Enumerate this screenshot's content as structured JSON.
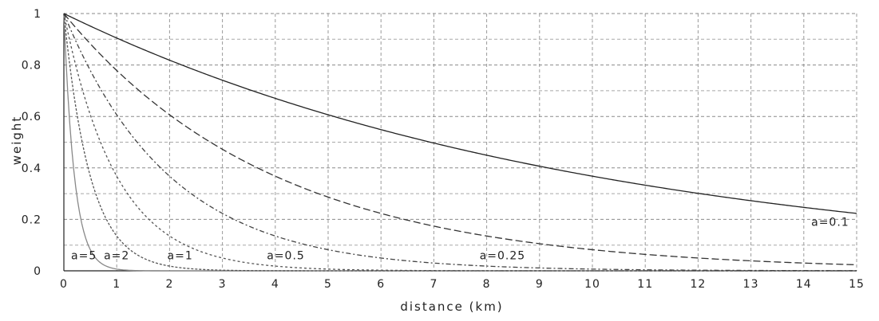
{
  "chart_data": {
    "type": "line",
    "title": "",
    "xlabel": "distance (km)",
    "ylabel": "weight",
    "xlim": [
      0,
      15
    ],
    "ylim": [
      0,
      1
    ],
    "x_ticks": [
      0,
      1,
      2,
      3,
      4,
      5,
      6,
      7,
      8,
      9,
      10,
      11,
      12,
      13,
      14,
      15
    ],
    "x_tick_labels": [
      "0",
      "1",
      "2",
      "3",
      "4",
      "5",
      "6",
      "7",
      "8",
      "9",
      "10",
      "11",
      "12",
      "13",
      "14",
      "15"
    ],
    "y_ticks": [
      0,
      0.2,
      0.4,
      0.6,
      0.8,
      1
    ],
    "y_tick_labels": [
      "0",
      "0.2",
      "0.4",
      "0.6",
      "0.8",
      "1"
    ],
    "y_minor_gridlines": [
      0.1,
      0.3,
      0.5,
      0.7,
      0.9
    ],
    "grid": true,
    "grid_style": "dashed",
    "function": "weight = exp(-a * distance)",
    "series": [
      {
        "name": "a=5",
        "a": 5,
        "dash": "none",
        "color": "#888888",
        "x": [
          0,
          0.1,
          0.2,
          0.3,
          0.4,
          0.5,
          0.6,
          0.8,
          1,
          1.5,
          15
        ],
        "y": [
          1,
          0.61,
          0.37,
          0.22,
          0.14,
          0.08,
          0.05,
          0.02,
          0.01,
          0,
          0
        ]
      },
      {
        "name": "a=2",
        "a": 2,
        "dash": "3,2",
        "color": "#555555",
        "x": [
          0,
          0.2,
          0.4,
          0.6,
          0.8,
          1,
          1.5,
          2,
          3,
          15
        ],
        "y": [
          1,
          0.67,
          0.45,
          0.3,
          0.2,
          0.14,
          0.05,
          0.02,
          0,
          0
        ]
      },
      {
        "name": "a=1",
        "a": 1,
        "dash": "3,3",
        "color": "#555555",
        "x": [
          0,
          0.5,
          1,
          1.5,
          2,
          3,
          4,
          5,
          6,
          15
        ],
        "y": [
          1,
          0.61,
          0.37,
          0.22,
          0.14,
          0.05,
          0.02,
          0.01,
          0,
          0
        ]
      },
      {
        "name": "a=0.5",
        "a": 0.5,
        "dash": "6,3,2,3",
        "color": "#444444",
        "x": [
          0,
          1,
          2,
          3,
          4,
          5,
          6,
          7,
          8,
          9,
          10,
          15
        ],
        "y": [
          1,
          0.61,
          0.37,
          0.22,
          0.14,
          0.08,
          0.05,
          0.03,
          0.02,
          0.01,
          0.01,
          0
        ]
      },
      {
        "name": "a=0.25",
        "a": 0.25,
        "dash": "9,4",
        "color": "#333333",
        "x": [
          0,
          1,
          2,
          3,
          4,
          5,
          6,
          7,
          8,
          9,
          10,
          11,
          12,
          13,
          14,
          15
        ],
        "y": [
          1,
          0.78,
          0.61,
          0.47,
          0.37,
          0.29,
          0.22,
          0.17,
          0.14,
          0.11,
          0.08,
          0.06,
          0.05,
          0.04,
          0.03,
          0.02
        ]
      },
      {
        "name": "a=0.1",
        "a": 0.1,
        "dash": "none",
        "color": "#222222",
        "x": [
          0,
          1,
          2,
          3,
          4,
          5,
          6,
          7,
          8,
          9,
          10,
          11,
          12,
          13,
          14,
          15
        ],
        "y": [
          1,
          0.9,
          0.82,
          0.74,
          0.67,
          0.61,
          0.55,
          0.5,
          0.45,
          0.41,
          0.37,
          0.33,
          0.3,
          0.27,
          0.25,
          0.22
        ]
      }
    ],
    "annotations": [
      {
        "text": "a=5",
        "x": 0.38,
        "y": 0.045
      },
      {
        "text": "a=2",
        "x": 1.0,
        "y": 0.045
      },
      {
        "text": "a=1",
        "x": 2.2,
        "y": 0.045
      },
      {
        "text": "a=0.5",
        "x": 4.2,
        "y": 0.045
      },
      {
        "text": "a=0.25",
        "x": 8.3,
        "y": 0.045
      },
      {
        "text": "a=0.1",
        "x": 14.5,
        "y": 0.175
      }
    ]
  }
}
